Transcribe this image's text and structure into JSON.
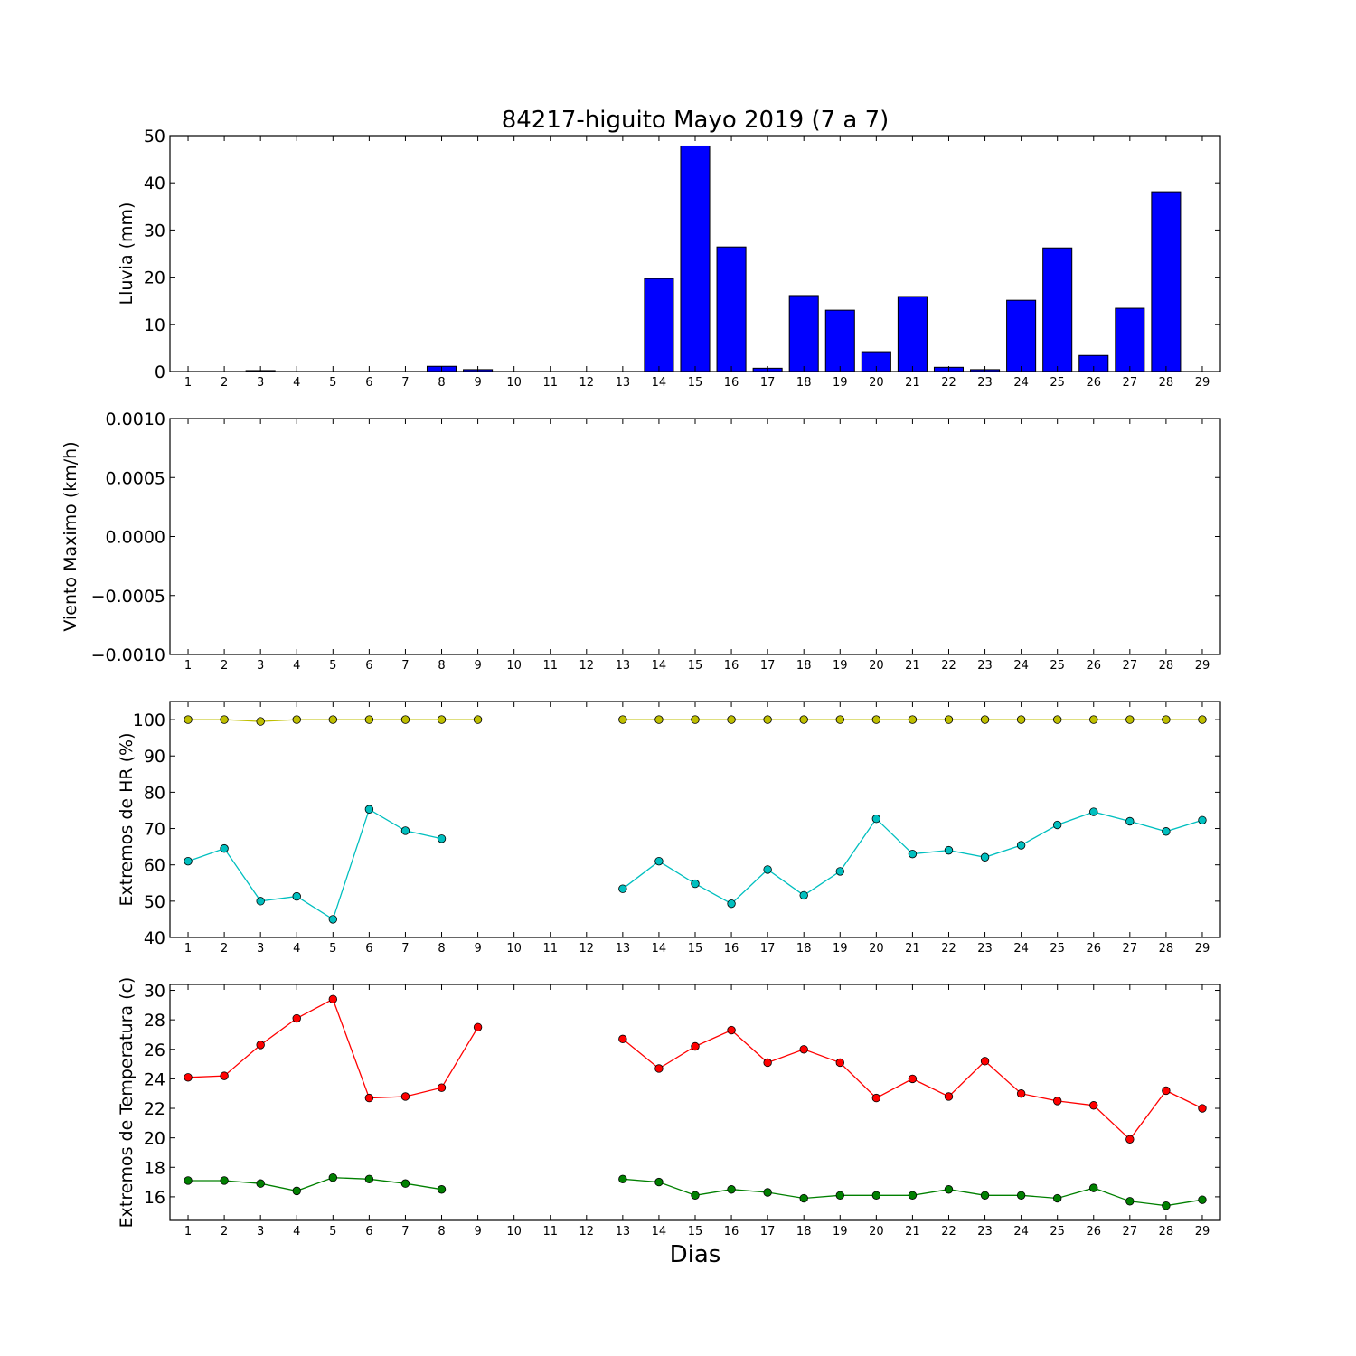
{
  "chart_data": {
    "title": "84217-higuito Mayo 2019  (7 a 7)",
    "xlabel": "Dias",
    "days": [
      1,
      2,
      3,
      4,
      5,
      6,
      7,
      8,
      9,
      10,
      11,
      12,
      13,
      14,
      15,
      16,
      17,
      18,
      19,
      20,
      21,
      22,
      23,
      24,
      25,
      26,
      27,
      28,
      29
    ],
    "colors": {
      "rain_bar": "#0000ff",
      "hr_max": "#bfbf00",
      "hr_min": "#00bfbf",
      "temp_max": "#ff0000",
      "temp_min": "#008000"
    },
    "panels": [
      {
        "id": "rain",
        "type": "bar",
        "ylabel": "Lluvia (mm)",
        "ylim": [
          0,
          50
        ],
        "yticks": [
          0,
          10,
          20,
          30,
          40,
          50
        ],
        "ytick_labels": [
          "0",
          "10",
          "20",
          "30",
          "40",
          "50"
        ],
        "values": [
          0,
          0,
          0.2,
          0,
          0,
          0,
          0,
          1.1,
          0.4,
          0,
          0,
          0,
          0,
          19.7,
          47.8,
          26.4,
          0.7,
          16.1,
          13.0,
          4.2,
          15.9,
          0.9,
          0.4,
          15.1,
          26.2,
          3.4,
          13.4,
          38.1,
          0
        ]
      },
      {
        "id": "wind",
        "type": "line",
        "ylabel": "Viento Maximo (km/h)",
        "ylim": [
          -0.001,
          0.001
        ],
        "yticks": [
          -0.001,
          -0.0005,
          0,
          0.0005,
          0.001
        ],
        "ytick_labels": [
          "−0.0010",
          "−0.0005",
          "0.0000",
          "0.0005",
          "0.0010"
        ],
        "series": []
      },
      {
        "id": "hr",
        "type": "line",
        "ylabel": "Extremos de HR (%)",
        "ylim": [
          40,
          105
        ],
        "yticks": [
          40,
          50,
          60,
          70,
          80,
          90,
          100
        ],
        "ytick_labels": [
          "40",
          "50",
          "60",
          "70",
          "80",
          "90",
          "100"
        ],
        "series": [
          {
            "key": "hr_max",
            "values": [
              100,
              100,
              99.5,
              100,
              100,
              100,
              100,
              100,
              100,
              null,
              null,
              null,
              100,
              100,
              100,
              100,
              100,
              100,
              100,
              100,
              100,
              100,
              100,
              100,
              100,
              100,
              100,
              100,
              100
            ]
          },
          {
            "key": "hr_min",
            "values": [
              61,
              64.5,
              50,
              51.3,
              45,
              75.3,
              69.4,
              67.2,
              null,
              null,
              null,
              null,
              53.4,
              61,
              54.8,
              49.3,
              58.7,
              51.6,
              58.2,
              72.7,
              63,
              64,
              62.1,
              65.4,
              71,
              74.6,
              72,
              69.2,
              72.3
            ]
          }
        ]
      },
      {
        "id": "temp",
        "type": "line",
        "ylabel": "Extremos de Temperatura (c)",
        "ylim": [
          14.4,
          30.4
        ],
        "yticks": [
          16,
          18,
          20,
          22,
          24,
          26,
          28,
          30
        ],
        "ytick_labels": [
          "16",
          "18",
          "20",
          "22",
          "24",
          "26",
          "28",
          "30"
        ],
        "series": [
          {
            "key": "temp_max",
            "values": [
              24.1,
              24.2,
              26.3,
              28.1,
              29.4,
              22.7,
              22.8,
              23.4,
              27.5,
              null,
              null,
              null,
              26.7,
              24.7,
              26.2,
              27.3,
              25.1,
              26,
              25.1,
              22.7,
              24,
              22.8,
              25.2,
              23,
              22.5,
              22.2,
              19.9,
              23.2,
              22
            ]
          },
          {
            "key": "temp_min",
            "values": [
              17.1,
              17.1,
              16.9,
              16.4,
              17.3,
              17.2,
              16.9,
              16.5,
              null,
              null,
              null,
              null,
              17.2,
              17,
              16.1,
              16.5,
              16.3,
              15.9,
              16.1,
              16.1,
              16.1,
              16.5,
              16.1,
              16.1,
              15.9,
              16.6,
              15.7,
              15.4,
              15.8
            ]
          }
        ]
      }
    ]
  }
}
